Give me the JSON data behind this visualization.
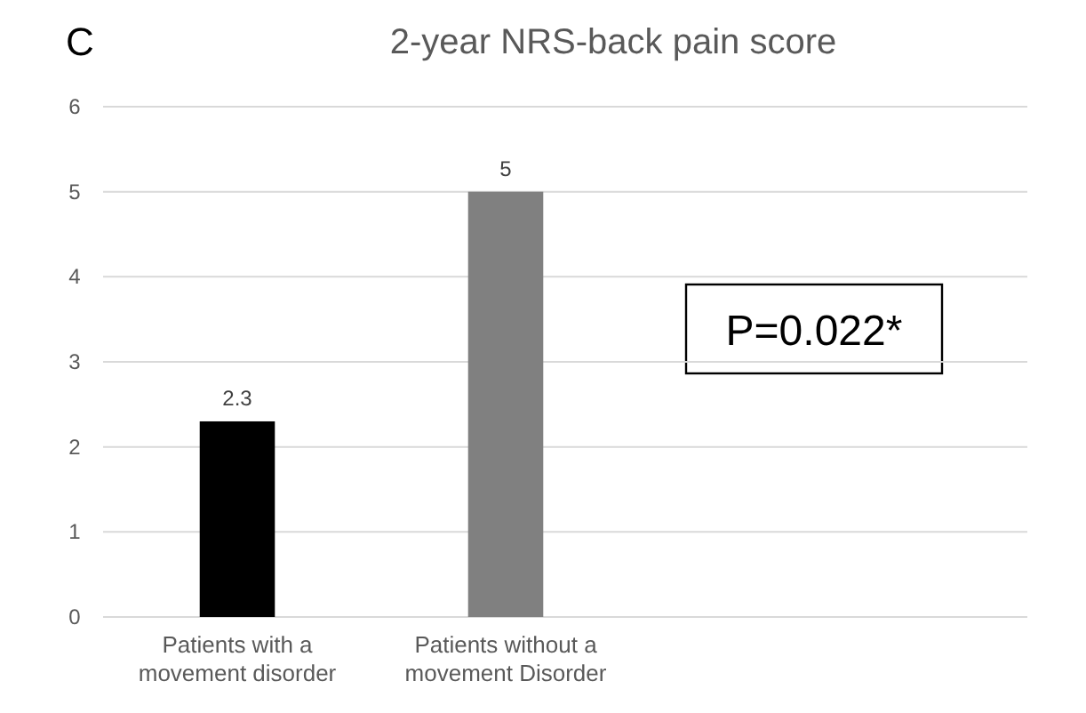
{
  "chart_data": {
    "type": "bar",
    "title": "2-year NRS-back pain score",
    "categories": [
      "Patients with a movement disorder",
      "Patients without a movement Disorder"
    ],
    "values": [
      2.3,
      5
    ],
    "colors": [
      "#000000",
      "#808080"
    ],
    "ylim": [
      0,
      6
    ],
    "yticks": [
      0,
      1,
      2,
      3,
      4,
      5,
      6
    ],
    "grid": "y",
    "data_labels": true,
    "annotations": [
      "C",
      "P=0.022*"
    ]
  }
}
